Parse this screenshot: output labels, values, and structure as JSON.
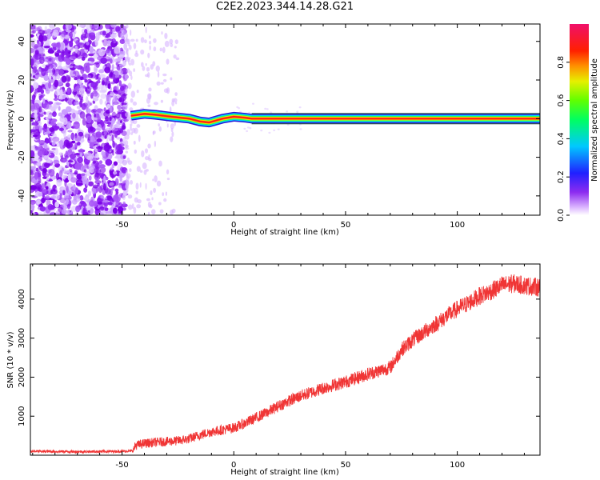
{
  "title": "C2E2.2023.344.14.28.G21",
  "chart_data": [
    {
      "type": "heatmap",
      "name": "spectrogram",
      "xlabel": "Height of straight line (km)",
      "ylabel": "Frequency (Hz)",
      "xlim": [
        -91,
        137
      ],
      "ylim": [
        -50,
        49
      ],
      "xticks": [
        -50,
        0,
        50,
        100
      ],
      "yticks": [
        -40,
        -20,
        0,
        20,
        40
      ],
      "noise_region": {
        "x": [
          -91,
          -48
        ],
        "y": [
          -50,
          49
        ]
      },
      "sparse_noise_region": {
        "x": [
          -48,
          -25
        ],
        "y": [
          -50,
          49
        ]
      },
      "carrier_band": {
        "x": [
          -46,
          137
        ],
        "y": [
          -1,
          1
        ]
      },
      "carrier_wobble": [
        [
          -46,
          1.5
        ],
        [
          -40,
          2.5
        ],
        [
          -35,
          2.0
        ],
        [
          -28,
          1.0
        ],
        [
          -20,
          0.0
        ],
        [
          -15,
          -1.5
        ],
        [
          -11,
          -2.0
        ],
        [
          -5,
          0.0
        ],
        [
          0,
          1.0
        ],
        [
          5,
          0.5
        ],
        [
          8,
          0.0
        ]
      ],
      "colorbar": {
        "label": "Normalized spectral amplitude",
        "range": [
          0,
          1
        ],
        "ticks": [
          "0.0",
          "0.2",
          "0.4",
          "0.6",
          "0.8"
        ],
        "tick_values": [
          0.0,
          0.2,
          0.4,
          0.6,
          0.8
        ]
      }
    },
    {
      "type": "line",
      "name": "snr",
      "xlabel": "Height of straight line (km)",
      "ylabel": "SNR (10 * v/v)",
      "xlim": [
        -91,
        137
      ],
      "ylim": [
        0,
        4900
      ],
      "xticks": [
        -50,
        0,
        50,
        100
      ],
      "yticks": [
        1000,
        2000,
        3000,
        4000
      ],
      "series": [
        {
          "name": "SNR",
          "color": "#f03535",
          "x": [
            -91,
            -80,
            -70,
            -60,
            -50,
            -45,
            -44,
            -40,
            -35,
            -30,
            -25,
            -20,
            -15,
            -10,
            -5,
            0,
            5,
            10,
            15,
            20,
            25,
            30,
            35,
            40,
            45,
            50,
            55,
            60,
            65,
            70,
            72,
            75,
            80,
            85,
            90,
            95,
            100,
            105,
            110,
            115,
            120,
            125,
            130,
            137
          ],
          "y": [
            100,
            95,
            90,
            95,
            100,
            110,
            250,
            300,
            330,
            350,
            370,
            420,
            520,
            600,
            650,
            700,
            820,
            960,
            1100,
            1260,
            1400,
            1520,
            1620,
            1720,
            1800,
            1880,
            1980,
            2080,
            2160,
            2250,
            2420,
            2700,
            2950,
            3150,
            3350,
            3550,
            3750,
            3900,
            4080,
            4200,
            4350,
            4400,
            4350,
            4300
          ],
          "noise_amplitude": 110
        }
      ]
    }
  ]
}
